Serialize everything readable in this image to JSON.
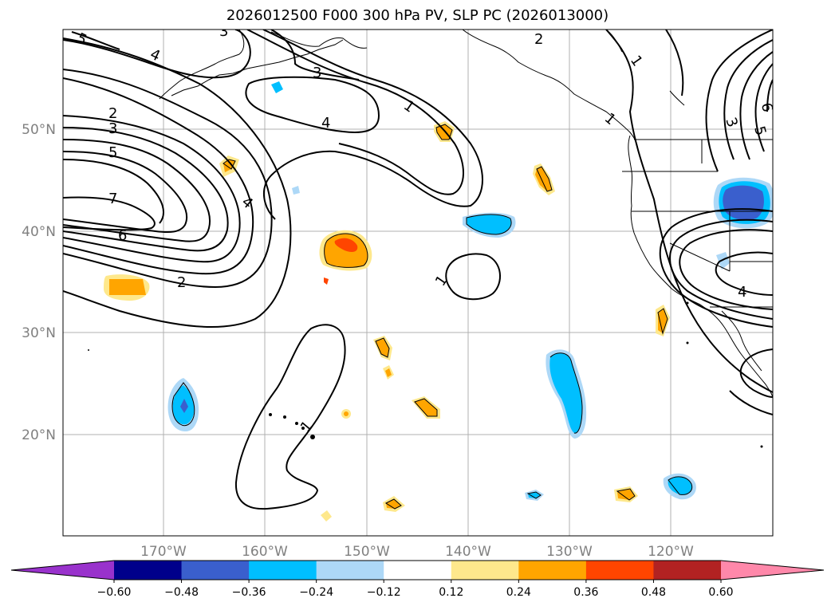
{
  "title": "2026012500 F000 300 hPa PV, SLP PC (2026013000)",
  "lat_labels": [
    "50°N",
    "40°N",
    "30°N",
    "20°N"
  ],
  "lon_labels": [
    "170°W",
    "160°W",
    "150°W",
    "140°W",
    "130°W",
    "120°W"
  ],
  "colorbar": {
    "ticks": [
      "−0.60",
      "−0.48",
      "−0.36",
      "−0.24",
      "−0.12",
      "0.12",
      "0.24",
      "0.36",
      "0.48",
      "0.60"
    ],
    "colors": [
      "#9932cc",
      "#00008b",
      "#3a5fcd",
      "#00bfff",
      "#add8f7",
      "#ffffff",
      "#fee88c",
      "#ffa500",
      "#ff4500",
      "#b22222",
      "#ff88aa"
    ]
  },
  "contour_labels": [
    "5",
    "3",
    "4",
    "2",
    "1",
    "3",
    "2",
    "3",
    "5",
    "7",
    "6",
    "2",
    "4",
    "4",
    "1",
    "1",
    "1",
    "6",
    "3",
    "5",
    "4",
    "1"
  ],
  "colors": {
    "orange": "#ffa500",
    "red_orange": "#ff4500",
    "light_orange": "#fee88c",
    "blue": "#00bfff",
    "light_blue": "#add8f7",
    "dark_blue": "#3a5fcd"
  }
}
